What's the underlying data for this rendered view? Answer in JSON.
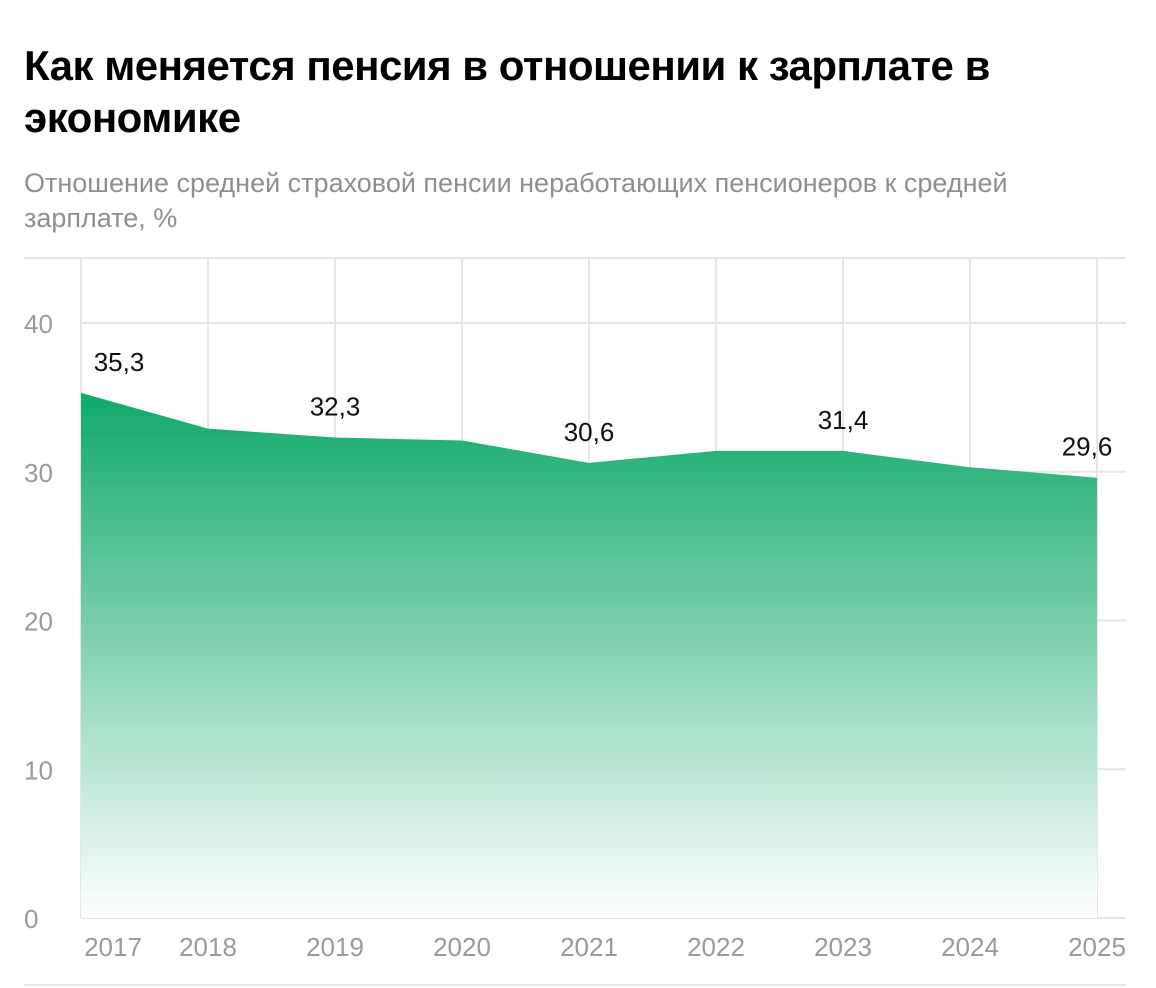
{
  "chart_data": {
    "type": "area",
    "title": "Как меняется пенсия в отношении к зарплате в экономике",
    "subtitle": "Отношение средней страховой пенсии неработающих пенсионеров к средней зарплате, %",
    "xlabel": "",
    "ylabel": "",
    "categories": [
      "2017",
      "2018",
      "2019",
      "2020",
      "2021",
      "2022",
      "2023",
      "2024",
      "2025"
    ],
    "values": [
      35.3,
      32.9,
      32.3,
      32.1,
      30.6,
      31.4,
      31.4,
      30.3,
      29.6
    ],
    "data_labels": {
      "2017": "35,3",
      "2019": "32,3",
      "2021": "30,6",
      "2023": "31,4",
      "2025": "29,6"
    },
    "ylim": [
      0,
      40
    ],
    "yticks": [
      "0",
      "10",
      "20",
      "30",
      "40"
    ],
    "grid": true,
    "colors": {
      "fill_top": "#0fa86a",
      "fill_bottom": "#ffffff",
      "grid": "#e6e6e6"
    }
  }
}
